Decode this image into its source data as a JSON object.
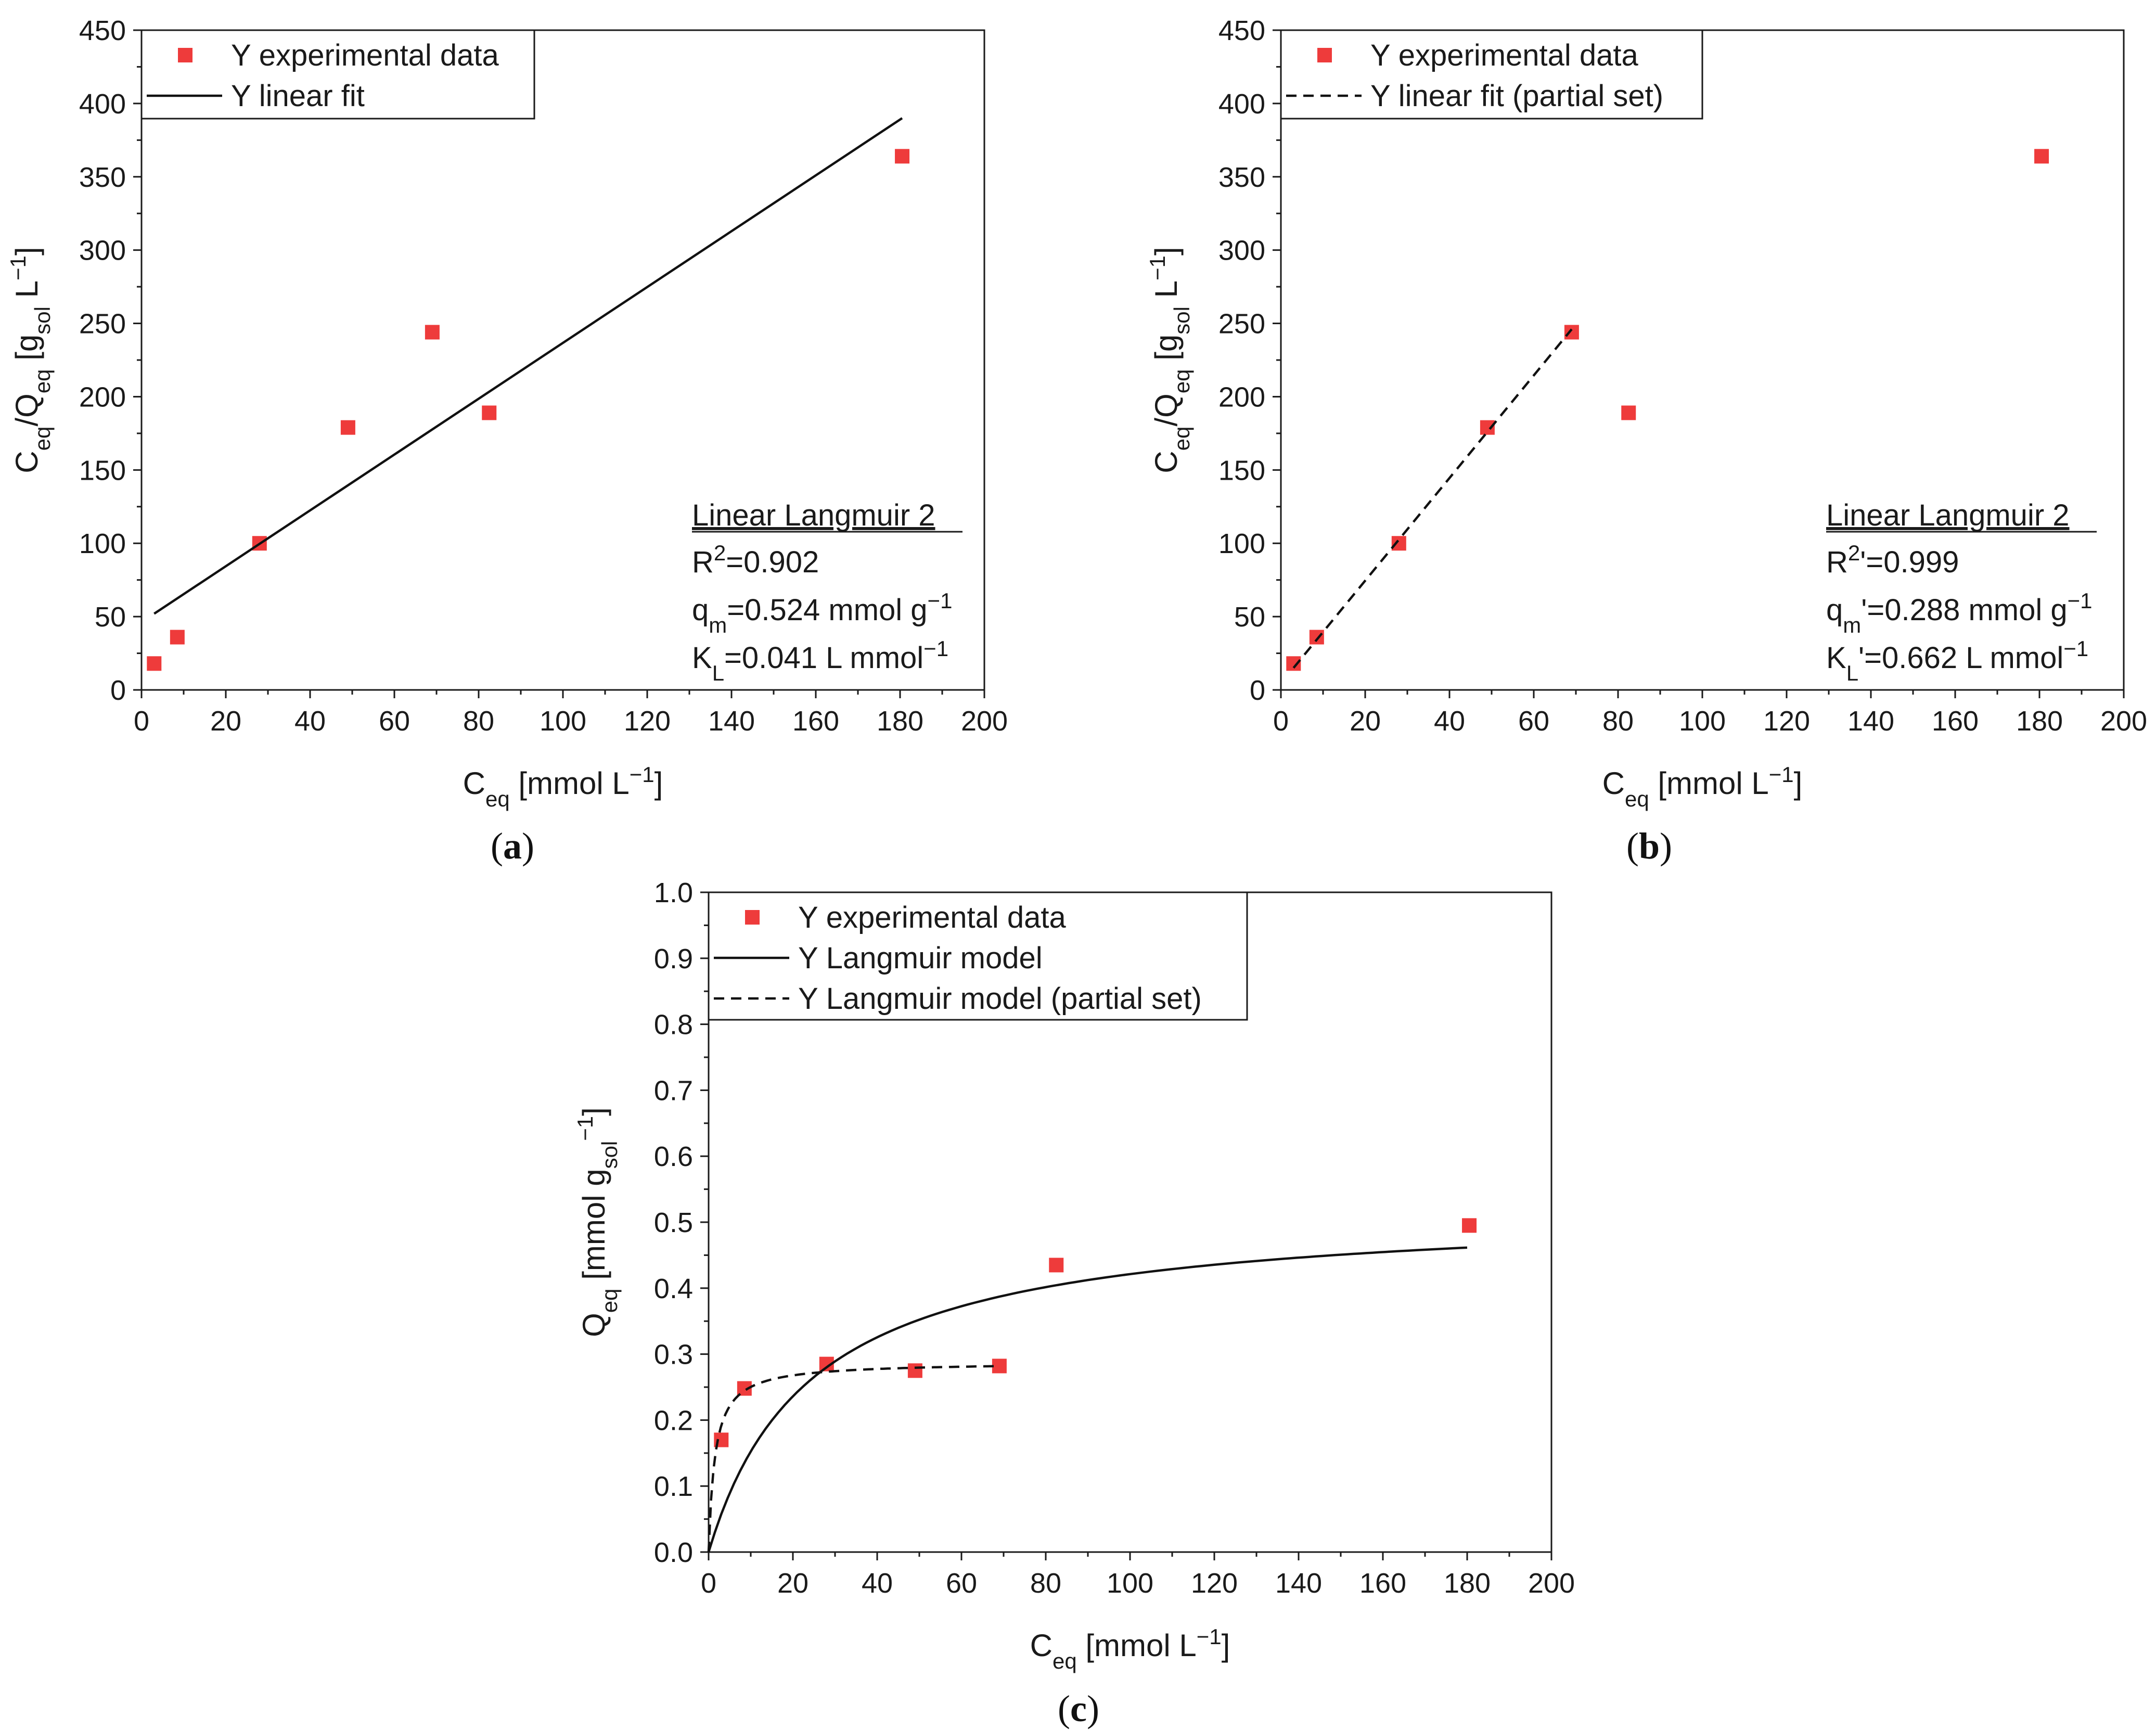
{
  "colors": {
    "marker": "#ee3b3b",
    "line": "#111111",
    "axis": "#1a1a1a"
  },
  "chart_data": [
    {
      "id": "a",
      "type": "scatter",
      "panel_label": "a",
      "xlabel": "C",
      "xlabel_sub": "eq",
      "xlabel_rest": " [mmol L",
      "xlabel_sup": "−1",
      "xlabel_end": "]",
      "ylabel_parts": [
        "C",
        "eq",
        "/Q",
        "eq",
        " [g",
        "sol",
        " L",
        "−1",
        "]"
      ],
      "xlim": [
        0,
        200
      ],
      "ylim": [
        0,
        450
      ],
      "xticks": [
        0,
        20,
        40,
        60,
        80,
        100,
        120,
        140,
        160,
        180,
        200
      ],
      "yticks": [
        0,
        50,
        100,
        150,
        200,
        250,
        300,
        350,
        400,
        450
      ],
      "legend": {
        "position": "top-left",
        "items": [
          {
            "kind": "marker",
            "label": "Y experimental data"
          },
          {
            "kind": "solid",
            "label": "Y linear fit"
          }
        ]
      },
      "series": [
        {
          "name": "Y experimental data",
          "kind": "marker",
          "x": [
            3,
            8.5,
            28,
            49,
            69,
            82.5,
            180.5
          ],
          "y": [
            18,
            36,
            100,
            179,
            244,
            189,
            364
          ]
        },
        {
          "name": "Y linear fit",
          "kind": "solid",
          "x": [
            3,
            180.5
          ],
          "y": [
            52,
            390
          ]
        }
      ],
      "annotation": {
        "title": "Linear Langmuir 2",
        "lines": [
          {
            "pre": "R",
            "sup1": "2",
            "mid": "=0.902",
            "sub": "",
            "post": "",
            "sup2": ""
          },
          {
            "pre": "q",
            "sub": "m",
            "mid": "=0.524 mmol g",
            "sup2": "−1"
          },
          {
            "pre": "K",
            "sub": "L",
            "mid": "=0.041 L mmol",
            "sup2": "−1"
          }
        ]
      }
    },
    {
      "id": "b",
      "type": "scatter",
      "panel_label": "b",
      "xlabel": "C",
      "xlabel_sub": "eq",
      "xlabel_rest": " [mmol L",
      "xlabel_sup": "−1",
      "xlabel_end": "]",
      "ylabel_parts": [
        "C",
        "eq",
        "/Q",
        "eq",
        " [g",
        "sol",
        " L",
        "−1",
        "]"
      ],
      "xlim": [
        0,
        200
      ],
      "ylim": [
        0,
        450
      ],
      "xticks": [
        0,
        20,
        40,
        60,
        80,
        100,
        120,
        140,
        160,
        180,
        200
      ],
      "yticks": [
        0,
        50,
        100,
        150,
        200,
        250,
        300,
        350,
        400,
        450
      ],
      "legend": {
        "position": "top-left",
        "items": [
          {
            "kind": "marker",
            "label": "Y experimental data"
          },
          {
            "kind": "dashed",
            "label": "Y linear fit (partial set)"
          }
        ]
      },
      "series": [
        {
          "name": "Y experimental data",
          "kind": "marker",
          "x": [
            3,
            8.5,
            28,
            49,
            69,
            82.5,
            180.5
          ],
          "y": [
            18,
            36,
            100,
            179,
            244,
            189,
            364
          ]
        },
        {
          "name": "Y linear fit (partial set)",
          "kind": "dashed",
          "x": [
            3,
            69
          ],
          "y": [
            15,
            246
          ]
        }
      ],
      "annotation": {
        "title": "Linear Langmuir 2",
        "lines": [
          {
            "pre": "R",
            "sup1": "2",
            "mid": "'=0.999",
            "sub": "",
            "sup2": ""
          },
          {
            "pre": "q",
            "sub": "m",
            "mid": "'=0.288 mmol g",
            "sup2": "−1"
          },
          {
            "pre": "K",
            "sub": "L",
            "mid": "'=0.662 L mmol",
            "sup2": "−1"
          }
        ]
      }
    },
    {
      "id": "c",
      "type": "scatter",
      "panel_label": "c",
      "xlabel": "C",
      "xlabel_sub": "eq",
      "xlabel_rest": " [mmol L",
      "xlabel_sup": "−1",
      "xlabel_end": "]",
      "ylabel_parts": [
        "Q",
        "eq",
        " [mmol g",
        "sol",
        "",
        "−1",
        "]"
      ],
      "xlim": [
        0,
        200
      ],
      "ylim": [
        0,
        1.0
      ],
      "xticks": [
        0,
        20,
        40,
        60,
        80,
        100,
        120,
        140,
        160,
        180,
        200
      ],
      "yticks": [
        0.0,
        0.1,
        0.2,
        0.3,
        0.4,
        0.5,
        0.6,
        0.7,
        0.8,
        0.9,
        1.0
      ],
      "legend": {
        "position": "top-left",
        "items": [
          {
            "kind": "marker",
            "label": "Y experimental data"
          },
          {
            "kind": "solid",
            "label": "Y Langmuir model"
          },
          {
            "kind": "dashed",
            "label": "Y Langmuir model (partial set)"
          }
        ]
      },
      "series": [
        {
          "name": "Y experimental data",
          "kind": "marker",
          "x": [
            3,
            8.5,
            28,
            49,
            69,
            82.5,
            180.5
          ],
          "y": [
            0.17,
            0.248,
            0.285,
            0.275,
            0.282,
            0.435,
            0.495
          ]
        },
        {
          "name": "Y Langmuir model",
          "kind": "solid",
          "model": {
            "qm": 0.524,
            "KL": 0.041,
            "xmin": 0,
            "xmax": 180
          }
        },
        {
          "name": "Y Langmuir model (partial set)",
          "kind": "dashed",
          "model": {
            "qm": 0.288,
            "KL": 0.662,
            "xmin": 0,
            "xmax": 69
          }
        }
      ]
    }
  ]
}
